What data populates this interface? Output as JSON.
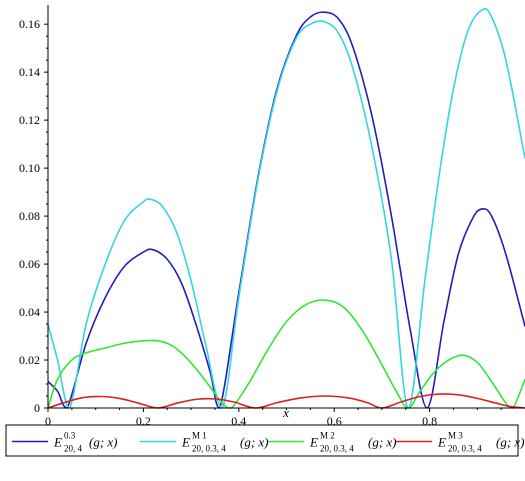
{
  "chart_data": {
    "type": "line",
    "xlabel": "x",
    "ylabel": "",
    "xlim": [
      0,
      1
    ],
    "ylim": [
      0,
      0.168
    ],
    "xticks": [
      "0",
      "0.2",
      "0.4",
      "0.6",
      "0.8"
    ],
    "xtick_values": [
      0,
      0.2,
      0.4,
      0.6,
      0.8
    ],
    "yticks": [
      "0",
      "0.02",
      "0.04",
      "0.06",
      "0.08",
      "0.10",
      "0.12",
      "0.14",
      "0.16"
    ],
    "ytick_values": [
      0,
      0.02,
      0.04,
      0.06,
      0.08,
      0.1,
      0.12,
      0.14,
      0.16
    ],
    "legend_position": "bottom",
    "series": [
      {
        "color": "#1f1fbf",
        "legend": {
          "main": "E",
          "sup": "0.3",
          "sub": "20, 4",
          "args": "(g; x)"
        },
        "points": [
          [
            0,
            0.011
          ],
          [
            0.02,
            0.007
          ],
          [
            0.04,
            0.0
          ],
          [
            0.08,
            0.027
          ],
          [
            0.12,
            0.046
          ],
          [
            0.16,
            0.059
          ],
          [
            0.2,
            0.065
          ],
          [
            0.22,
            0.066
          ],
          [
            0.25,
            0.062
          ],
          [
            0.28,
            0.052
          ],
          [
            0.31,
            0.035
          ],
          [
            0.34,
            0.015
          ],
          [
            0.36,
            0.0
          ],
          [
            0.4,
            0.048
          ],
          [
            0.44,
            0.096
          ],
          [
            0.48,
            0.133
          ],
          [
            0.52,
            0.155
          ],
          [
            0.55,
            0.163
          ],
          [
            0.58,
            0.165
          ],
          [
            0.61,
            0.162
          ],
          [
            0.64,
            0.15
          ],
          [
            0.68,
            0.121
          ],
          [
            0.72,
            0.08
          ],
          [
            0.76,
            0.032
          ],
          [
            0.795,
            0.0
          ],
          [
            0.83,
            0.036
          ],
          [
            0.86,
            0.064
          ],
          [
            0.89,
            0.079
          ],
          [
            0.91,
            0.083
          ],
          [
            0.93,
            0.08
          ],
          [
            0.96,
            0.064
          ],
          [
            1.0,
            0.034
          ]
        ]
      },
      {
        "color": "#33d6e6",
        "legend": {
          "main": "E",
          "sup": "M 1",
          "sub": "20, 0.3, 4",
          "args": "(g; x)"
        },
        "points": [
          [
            0,
            0.035
          ],
          [
            0.02,
            0.02
          ],
          [
            0.045,
            0.0
          ],
          [
            0.08,
            0.035
          ],
          [
            0.12,
            0.06
          ],
          [
            0.16,
            0.078
          ],
          [
            0.2,
            0.086
          ],
          [
            0.215,
            0.087
          ],
          [
            0.24,
            0.084
          ],
          [
            0.27,
            0.073
          ],
          [
            0.3,
            0.053
          ],
          [
            0.33,
            0.027
          ],
          [
            0.365,
            0.0
          ],
          [
            0.4,
            0.046
          ],
          [
            0.44,
            0.095
          ],
          [
            0.48,
            0.132
          ],
          [
            0.52,
            0.154
          ],
          [
            0.55,
            0.16
          ],
          [
            0.58,
            0.161
          ],
          [
            0.61,
            0.156
          ],
          [
            0.64,
            0.141
          ],
          [
            0.68,
            0.108
          ],
          [
            0.72,
            0.062
          ],
          [
            0.755,
            0.0
          ],
          [
            0.79,
            0.053
          ],
          [
            0.82,
            0.097
          ],
          [
            0.85,
            0.133
          ],
          [
            0.88,
            0.157
          ],
          [
            0.91,
            0.166
          ],
          [
            0.93,
            0.163
          ],
          [
            0.96,
            0.145
          ],
          [
            1.0,
            0.104
          ]
        ]
      },
      {
        "color": "#33e633",
        "legend": {
          "main": "E",
          "sup": "M 2",
          "sub": "20, 0.3, 4",
          "args": "(g; x)"
        },
        "points": [
          [
            0,
            0.0
          ],
          [
            0.02,
            0.012
          ],
          [
            0.05,
            0.02
          ],
          [
            0.08,
            0.023
          ],
          [
            0.12,
            0.025
          ],
          [
            0.16,
            0.027
          ],
          [
            0.2,
            0.028
          ],
          [
            0.23,
            0.028
          ],
          [
            0.26,
            0.026
          ],
          [
            0.29,
            0.021
          ],
          [
            0.32,
            0.014
          ],
          [
            0.35,
            0.006
          ],
          [
            0.37,
            0.001
          ],
          [
            0.385,
            0.0
          ],
          [
            0.42,
            0.01
          ],
          [
            0.46,
            0.024
          ],
          [
            0.5,
            0.036
          ],
          [
            0.54,
            0.043
          ],
          [
            0.58,
            0.045
          ],
          [
            0.62,
            0.042
          ],
          [
            0.66,
            0.032
          ],
          [
            0.7,
            0.018
          ],
          [
            0.73,
            0.007
          ],
          [
            0.755,
            0.0
          ],
          [
            0.78,
            0.007
          ],
          [
            0.81,
            0.015
          ],
          [
            0.84,
            0.02
          ],
          [
            0.87,
            0.022
          ],
          [
            0.9,
            0.019
          ],
          [
            0.93,
            0.011
          ],
          [
            0.96,
            0.002
          ],
          [
            0.975,
            0.0
          ],
          [
            1.0,
            0.012
          ]
        ]
      },
      {
        "color": "#e01f1f",
        "legend": {
          "main": "E",
          "sup": "M 3",
          "sub": "20, 0.3, 4",
          "args": "(g; x)"
        },
        "points": [
          [
            0,
            0.0
          ],
          [
            0.03,
            0.002
          ],
          [
            0.07,
            0.0042
          ],
          [
            0.11,
            0.0048
          ],
          [
            0.15,
            0.004
          ],
          [
            0.19,
            0.002
          ],
          [
            0.23,
            0.0
          ],
          [
            0.27,
            0.002
          ],
          [
            0.31,
            0.0036
          ],
          [
            0.35,
            0.0038
          ],
          [
            0.39,
            0.0025
          ],
          [
            0.435,
            0.0
          ],
          [
            0.48,
            0.0022
          ],
          [
            0.53,
            0.0042
          ],
          [
            0.58,
            0.005
          ],
          [
            0.63,
            0.0042
          ],
          [
            0.67,
            0.0022
          ],
          [
            0.7,
            0.0
          ],
          [
            0.74,
            0.0025
          ],
          [
            0.78,
            0.0048
          ],
          [
            0.82,
            0.0058
          ],
          [
            0.86,
            0.0055
          ],
          [
            0.9,
            0.004
          ],
          [
            0.94,
            0.002
          ],
          [
            0.97,
            0.0006
          ],
          [
            1.0,
            0.0
          ]
        ]
      }
    ]
  }
}
